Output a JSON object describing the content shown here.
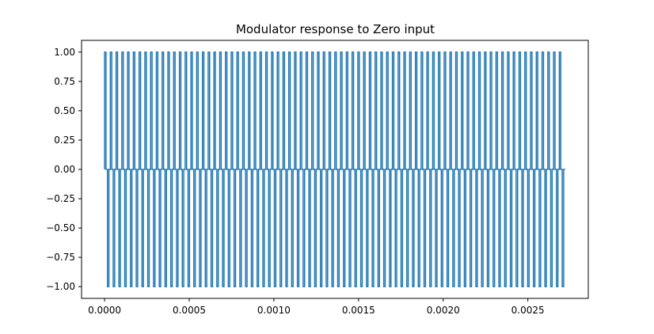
{
  "chart_data": {
    "type": "line",
    "title": "Modulator response to Zero input",
    "xlabel": "",
    "ylabel": "",
    "xlim": [
      -0.000136,
      0.002857
    ],
    "ylim": [
      -1.1,
      1.1
    ],
    "x_ticks": [
      0.0,
      0.0005,
      0.001,
      0.0015,
      0.002,
      0.0025
    ],
    "x_tick_labels": [
      "0.0000",
      "0.0005",
      "0.0010",
      "0.0015",
      "0.0020",
      "0.0025"
    ],
    "y_ticks": [
      1.0,
      0.75,
      0.5,
      0.25,
      0.0,
      -0.25,
      -0.5,
      -0.75,
      -1.0
    ],
    "y_tick_labels": [
      "1.00",
      "0.75",
      "0.50",
      "0.25",
      "0.00",
      "−0.25",
      "−0.50",
      "−0.75",
      "−1.00"
    ],
    "grid": false,
    "series": [
      {
        "color": "#1f77b4",
        "signal": {
          "shape": "bipolar return-to-zero pulse train",
          "high": 1.0,
          "low": -1.0,
          "rest": 0.0,
          "t_start": 0.0,
          "t_end": 0.00272,
          "cycles": 80
        }
      }
    ]
  }
}
